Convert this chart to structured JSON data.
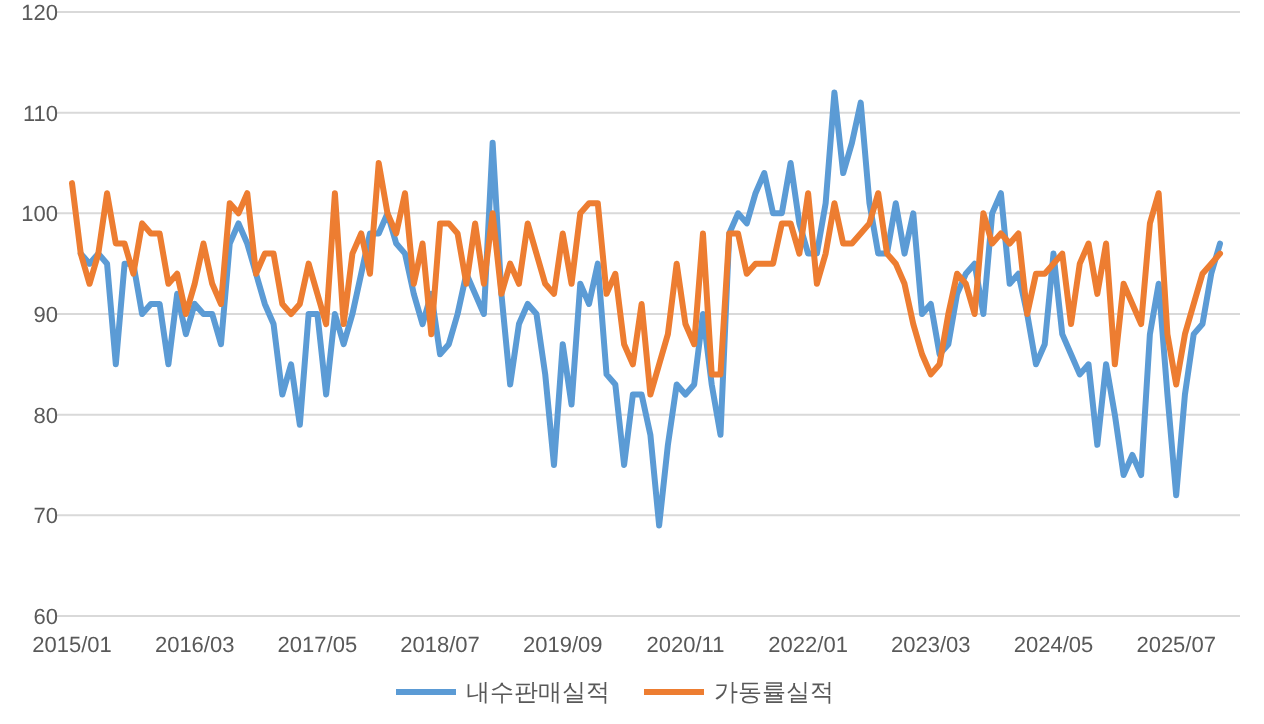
{
  "chart_data": {
    "type": "line",
    "categories": [
      "2015/01",
      null,
      null,
      null,
      null,
      null,
      null,
      null,
      null,
      null,
      null,
      null,
      null,
      null,
      "2016/03",
      null,
      null,
      null,
      null,
      null,
      null,
      null,
      null,
      null,
      null,
      null,
      null,
      null,
      "2017/05",
      null,
      null,
      null,
      null,
      null,
      null,
      null,
      null,
      null,
      null,
      null,
      null,
      null,
      "2018/07",
      null,
      null,
      null,
      null,
      null,
      null,
      null,
      null,
      null,
      null,
      null,
      null,
      null,
      "2019/09",
      null,
      null,
      null,
      null,
      null,
      null,
      null,
      null,
      null,
      null,
      null,
      null,
      null,
      "2020/11",
      null,
      null,
      null,
      null,
      null,
      null,
      null,
      null,
      null,
      null,
      null,
      null,
      null,
      "2022/01",
      null,
      null,
      null,
      null,
      null,
      null,
      null,
      null,
      null,
      null,
      null,
      null,
      null,
      "2023/03",
      null,
      null,
      null,
      null,
      null,
      null,
      null,
      null,
      null,
      null,
      null,
      null,
      null,
      "2024/05",
      null,
      null,
      null,
      null,
      null,
      null,
      null,
      null,
      null,
      null,
      null,
      null,
      null,
      "2025/07",
      null,
      null,
      null,
      null,
      null
    ],
    "series": [
      {
        "name": "내수판매실적",
        "color": "#5b9bd5",
        "values": [
          null,
          96,
          95,
          96,
          95,
          85,
          95,
          95,
          90,
          91,
          91,
          85,
          92,
          88,
          91,
          90,
          90,
          87,
          97,
          99,
          97,
          94,
          91,
          89,
          82,
          85,
          79,
          90,
          90,
          82,
          90,
          87,
          90,
          94,
          98,
          98,
          100,
          97,
          96,
          92,
          89,
          92,
          86,
          87,
          90,
          94,
          92,
          90,
          107,
          92,
          83,
          89,
          91,
          90,
          84,
          75,
          87,
          81,
          93,
          91,
          95,
          84,
          83,
          75,
          82,
          82,
          78,
          69,
          77,
          83,
          82,
          83,
          90,
          83,
          78,
          98,
          100,
          99,
          102,
          104,
          100,
          100,
          105,
          99,
          96,
          96,
          101,
          112,
          104,
          107,
          111,
          101,
          96,
          96,
          101,
          96,
          100,
          90,
          91,
          86,
          87,
          92,
          94,
          95,
          90,
          100,
          102,
          93,
          94,
          90,
          85,
          87,
          96,
          88,
          86,
          84,
          85,
          77,
          85,
          80,
          74,
          76,
          74,
          88,
          93,
          82,
          72,
          82,
          88,
          89,
          94,
          97
        ]
      },
      {
        "name": "가동률실적",
        "color": "#ed7d31",
        "values": [
          103,
          96,
          93,
          96,
          102,
          97,
          97,
          94,
          99,
          98,
          98,
          93,
          94,
          90,
          93,
          97,
          93,
          91,
          101,
          100,
          102,
          94,
          96,
          96,
          91,
          90,
          91,
          95,
          92,
          89,
          102,
          89,
          96,
          98,
          94,
          105,
          100,
          98,
          102,
          93,
          97,
          88,
          99,
          99,
          98,
          93,
          99,
          93,
          100,
          92,
          95,
          93,
          99,
          96,
          93,
          92,
          98,
          93,
          100,
          101,
          101,
          92,
          94,
          87,
          85,
          91,
          82,
          85,
          88,
          95,
          89,
          87,
          98,
          84,
          84,
          98,
          98,
          94,
          95,
          95,
          95,
          99,
          99,
          96,
          102,
          93,
          96,
          101,
          97,
          97,
          98,
          99,
          102,
          96,
          95,
          93,
          89,
          86,
          84,
          85,
          90,
          94,
          93,
          90,
          100,
          97,
          98,
          97,
          98,
          90,
          94,
          94,
          95,
          96,
          89,
          95,
          97,
          92,
          97,
          85,
          93,
          91,
          89,
          99,
          102,
          88,
          83,
          88,
          91,
          94,
          95,
          96
        ]
      }
    ],
    "ylim": [
      60,
      120
    ],
    "yticks": [
      60,
      70,
      80,
      90,
      100,
      110,
      120
    ],
    "grid": "y",
    "legend": "bottom"
  }
}
